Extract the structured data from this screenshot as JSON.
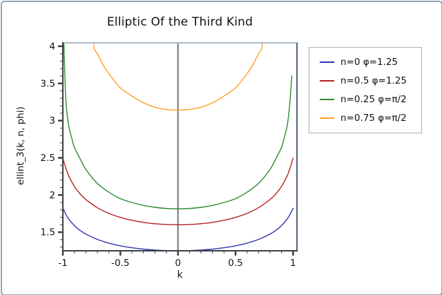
{
  "title": "Elliptic Of the Third Kind",
  "colors": {
    "background": "#ffffff",
    "outer_border": "#90a5ba",
    "axis_dark": "#3a3f46",
    "frame_top": "#aab9cb",
    "frame_right": "#55647a",
    "zero_line": "#737373",
    "legend_border": "#a9b0b8",
    "text": "#111111"
  },
  "chart_data": {
    "type": "line",
    "title": "Elliptic Of the Third Kind",
    "xlabel": "k",
    "ylabel": "ellint_3(k, n, phi)",
    "xlim": [
      -1,
      1.034
    ],
    "ylim": [
      1.25,
      4.046
    ],
    "x_major_ticks": [
      -1,
      -0.5,
      0,
      0.5,
      1
    ],
    "x_minor_step": 0.1,
    "y_major_ticks": [
      1.5,
      2,
      2.5,
      3,
      3.5,
      4
    ],
    "y_minor_step": 0.1,
    "grid": false,
    "zero_vline": 0,
    "legend_position": "right",
    "series": [
      {
        "name": "n=0 φ=1.25",
        "color": "#3333b2",
        "points": [
          [
            -1,
            1.822
          ],
          [
            -0.98,
            1.759
          ],
          [
            -0.95,
            1.679
          ],
          [
            -0.9,
            1.589
          ],
          [
            -0.85,
            1.524
          ],
          [
            -0.8,
            1.475
          ],
          [
            -0.7,
            1.403
          ],
          [
            -0.6,
            1.353
          ],
          [
            -0.5,
            1.317
          ],
          [
            -0.4,
            1.291
          ],
          [
            -0.3,
            1.272
          ],
          [
            -0.2,
            1.26
          ],
          [
            -0.1,
            1.253
          ],
          [
            0,
            1.25
          ],
          [
            0.1,
            1.253
          ],
          [
            0.2,
            1.26
          ],
          [
            0.3,
            1.272
          ],
          [
            0.4,
            1.291
          ],
          [
            0.5,
            1.317
          ],
          [
            0.6,
            1.353
          ],
          [
            0.7,
            1.403
          ],
          [
            0.8,
            1.475
          ],
          [
            0.85,
            1.524
          ],
          [
            0.9,
            1.589
          ],
          [
            0.95,
            1.679
          ],
          [
            0.98,
            1.759
          ],
          [
            1,
            1.822
          ]
        ]
      },
      {
        "name": "n=0.5 φ=1.25",
        "color": "#b22222",
        "points": [
          [
            -1,
            2.494
          ],
          [
            -0.98,
            2.392
          ],
          [
            -0.95,
            2.261
          ],
          [
            -0.9,
            2.116
          ],
          [
            -0.85,
            2.015
          ],
          [
            -0.8,
            1.939
          ],
          [
            -0.7,
            1.829
          ],
          [
            -0.6,
            1.753
          ],
          [
            -0.5,
            1.699
          ],
          [
            -0.4,
            1.66
          ],
          [
            -0.3,
            1.632
          ],
          [
            -0.2,
            1.614
          ],
          [
            -0.1,
            1.604
          ],
          [
            0,
            1.6
          ],
          [
            0.1,
            1.604
          ],
          [
            0.2,
            1.614
          ],
          [
            0.3,
            1.632
          ],
          [
            0.4,
            1.66
          ],
          [
            0.5,
            1.699
          ],
          [
            0.6,
            1.753
          ],
          [
            0.7,
            1.829
          ],
          [
            0.8,
            1.939
          ],
          [
            0.85,
            2.015
          ],
          [
            0.9,
            2.116
          ],
          [
            0.95,
            2.261
          ],
          [
            0.98,
            2.392
          ],
          [
            1,
            2.494
          ]
        ]
      },
      {
        "name": "n=0.25 φ=π/2",
        "color": "#2e8b2e",
        "points": [
          [
            -0.996,
            4.6
          ],
          [
            -0.99,
            4.0
          ],
          [
            -0.98,
            3.48
          ],
          [
            -0.97,
            3.2
          ],
          [
            -0.95,
            2.94
          ],
          [
            -0.92,
            2.75
          ],
          [
            -0.9,
            2.64
          ],
          [
            -0.85,
            2.486
          ],
          [
            -0.8,
            2.344
          ],
          [
            -0.7,
            2.156
          ],
          [
            -0.6,
            2.038
          ],
          [
            -0.5,
            1.951
          ],
          [
            -0.4,
            1.899
          ],
          [
            -0.3,
            1.86
          ],
          [
            -0.2,
            1.834
          ],
          [
            -0.1,
            1.819
          ],
          [
            0,
            1.814
          ],
          [
            0.1,
            1.819
          ],
          [
            0.2,
            1.834
          ],
          [
            0.3,
            1.86
          ],
          [
            0.4,
            1.899
          ],
          [
            0.5,
            1.951
          ],
          [
            0.6,
            2.038
          ],
          [
            0.7,
            2.156
          ],
          [
            0.8,
            2.344
          ],
          [
            0.85,
            2.486
          ],
          [
            0.9,
            2.64
          ],
          [
            0.92,
            2.75
          ],
          [
            0.95,
            2.94
          ],
          [
            0.97,
            3.2
          ],
          [
            0.98,
            3.4
          ],
          [
            0.99,
            3.6
          ]
        ]
      },
      {
        "name": "n=0.75 φ=π/2",
        "color": "#ff9f1f",
        "points": [
          [
            -0.75,
            4.4
          ],
          [
            -0.73,
            4.0
          ],
          [
            -0.7,
            3.9
          ],
          [
            -0.65,
            3.75
          ],
          [
            -0.6,
            3.63
          ],
          [
            -0.55,
            3.53
          ],
          [
            -0.5,
            3.44
          ],
          [
            -0.4,
            3.33
          ],
          [
            -0.3,
            3.24
          ],
          [
            -0.2,
            3.18
          ],
          [
            -0.1,
            3.15
          ],
          [
            0,
            3.142
          ],
          [
            0.1,
            3.15
          ],
          [
            0.2,
            3.18
          ],
          [
            0.3,
            3.24
          ],
          [
            0.4,
            3.33
          ],
          [
            0.5,
            3.44
          ],
          [
            0.55,
            3.53
          ],
          [
            0.6,
            3.63
          ],
          [
            0.65,
            3.75
          ],
          [
            0.7,
            3.9
          ],
          [
            0.73,
            4.0
          ],
          [
            0.75,
            4.4
          ]
        ]
      }
    ]
  }
}
